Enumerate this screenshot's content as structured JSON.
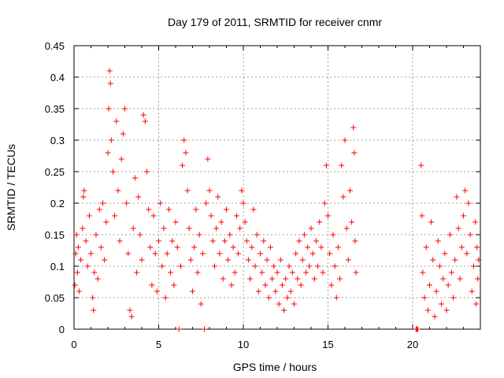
{
  "chart_data": {
    "type": "scatter",
    "title": "Day 179 of 2011, SRMTID for receiver cnmr",
    "xlabel": "GPS time / hours",
    "ylabel": "SRMTID / TECUs",
    "xlim": [
      0,
      24
    ],
    "ylim": [
      0,
      0.45
    ],
    "xticks": [
      0,
      5,
      10,
      15,
      20
    ],
    "xtick_labels": [
      "0",
      "5",
      "10",
      "15",
      "20"
    ],
    "yticks": [
      0,
      0.05,
      0.1,
      0.15,
      0.2,
      0.25,
      0.3,
      0.35,
      0.4,
      0.45
    ],
    "ytick_labels": [
      "0",
      "0.05",
      "0.1",
      "0.15",
      "0.2",
      "0.25",
      "0.3",
      "0.35",
      "0.4",
      "0.45"
    ],
    "grid": true,
    "marker": "+",
    "color": "#ff0000",
    "series": [
      {
        "name": "SRMTID",
        "points": [
          [
            0.05,
            0.07
          ],
          [
            0.1,
            0.12
          ],
          [
            0.15,
            0.15
          ],
          [
            0.2,
            0.09
          ],
          [
            0.25,
            0.13
          ],
          [
            0.3,
            0.06
          ],
          [
            0.4,
            0.11
          ],
          [
            0.5,
            0.16
          ],
          [
            0.55,
            0.21
          ],
          [
            0.6,
            0.22
          ],
          [
            0.7,
            0.14
          ],
          [
            0.8,
            0.1
          ],
          [
            0.9,
            0.18
          ],
          [
            1.0,
            0.12
          ],
          [
            1.1,
            0.05
          ],
          [
            1.15,
            0.03
          ],
          [
            1.2,
            0.09
          ],
          [
            1.3,
            0.15
          ],
          [
            1.4,
            0.08
          ],
          [
            1.5,
            0.19
          ],
          [
            1.6,
            0.13
          ],
          [
            1.7,
            0.2
          ],
          [
            1.8,
            0.11
          ],
          [
            1.9,
            0.17
          ],
          [
            2.0,
            0.28
          ],
          [
            2.05,
            0.35
          ],
          [
            2.1,
            0.41
          ],
          [
            2.15,
            0.39
          ],
          [
            2.2,
            0.3
          ],
          [
            2.3,
            0.25
          ],
          [
            2.4,
            0.18
          ],
          [
            2.5,
            0.33
          ],
          [
            2.6,
            0.22
          ],
          [
            2.7,
            0.14
          ],
          [
            2.8,
            0.27
          ],
          [
            2.9,
            0.31
          ],
          [
            3.0,
            0.35
          ],
          [
            3.1,
            0.2
          ],
          [
            3.2,
            0.12
          ],
          [
            3.3,
            0.03
          ],
          [
            3.4,
            0.02
          ],
          [
            3.5,
            0.16
          ],
          [
            3.6,
            0.24
          ],
          [
            3.7,
            0.09
          ],
          [
            3.8,
            0.21
          ],
          [
            3.9,
            0.15
          ],
          [
            4.0,
            0.11
          ],
          [
            4.1,
            0.34
          ],
          [
            4.2,
            0.33
          ],
          [
            4.3,
            0.25
          ],
          [
            4.4,
            0.19
          ],
          [
            4.5,
            0.13
          ],
          [
            4.6,
            0.07
          ],
          [
            4.7,
            0.18
          ],
          [
            4.8,
            0.12
          ],
          [
            4.9,
            0.06
          ],
          [
            5.0,
            0.14
          ],
          [
            5.1,
            0.2
          ],
          [
            5.2,
            0.1
          ],
          [
            5.3,
            0.16
          ],
          [
            5.4,
            0.05
          ],
          [
            5.5,
            0.12
          ],
          [
            5.6,
            0.19
          ],
          [
            5.7,
            0.09
          ],
          [
            5.8,
            0.14
          ],
          [
            5.9,
            0.07
          ],
          [
            6.0,
            0.17
          ],
          [
            6.1,
            0.13
          ],
          [
            6.2,
            0.0
          ],
          [
            6.3,
            0.1
          ],
          [
            6.4,
            0.26
          ],
          [
            6.5,
            0.3
          ],
          [
            6.6,
            0.28
          ],
          [
            6.7,
            0.22
          ],
          [
            6.8,
            0.16
          ],
          [
            6.9,
            0.11
          ],
          [
            7.0,
            0.06
          ],
          [
            7.1,
            0.13
          ],
          [
            7.2,
            0.19
          ],
          [
            7.3,
            0.09
          ],
          [
            7.4,
            0.15
          ],
          [
            7.5,
            0.04
          ],
          [
            7.6,
            0.12
          ],
          [
            7.7,
            0.0
          ],
          [
            7.8,
            0.2
          ],
          [
            7.9,
            0.27
          ],
          [
            8.0,
            0.22
          ],
          [
            8.1,
            0.18
          ],
          [
            8.2,
            0.14
          ],
          [
            8.3,
            0.1
          ],
          [
            8.4,
            0.16
          ],
          [
            8.5,
            0.21
          ],
          [
            8.6,
            0.12
          ],
          [
            8.7,
            0.17
          ],
          [
            8.8,
            0.08
          ],
          [
            8.9,
            0.14
          ],
          [
            9.0,
            0.19
          ],
          [
            9.1,
            0.11
          ],
          [
            9.2,
            0.15
          ],
          [
            9.3,
            0.07
          ],
          [
            9.4,
            0.13
          ],
          [
            9.5,
            0.09
          ],
          [
            9.6,
            0.18
          ],
          [
            9.7,
            0.12
          ],
          [
            9.8,
            0.16
          ],
          [
            9.9,
            0.22
          ],
          [
            10.0,
            0.2
          ],
          [
            10.1,
            0.17
          ],
          [
            10.2,
            0.14
          ],
          [
            10.3,
            0.11
          ],
          [
            10.4,
            0.08
          ],
          [
            10.5,
            0.13
          ],
          [
            10.6,
            0.19
          ],
          [
            10.7,
            0.1
          ],
          [
            10.8,
            0.15
          ],
          [
            10.9,
            0.06
          ],
          [
            11.0,
            0.12
          ],
          [
            11.1,
            0.09
          ],
          [
            11.2,
            0.14
          ],
          [
            11.3,
            0.07
          ],
          [
            11.4,
            0.11
          ],
          [
            11.5,
            0.05
          ],
          [
            11.6,
            0.13
          ],
          [
            11.7,
            0.08
          ],
          [
            11.8,
            0.1
          ],
          [
            11.9,
            0.06
          ],
          [
            12.0,
            0.09
          ],
          [
            12.1,
            0.04
          ],
          [
            12.2,
            0.11
          ],
          [
            12.3,
            0.07
          ],
          [
            12.4,
            0.03
          ],
          [
            12.5,
            0.08
          ],
          [
            12.6,
            0.05
          ],
          [
            12.7,
            0.1
          ],
          [
            12.8,
            0.06
          ],
          [
            12.9,
            0.09
          ],
          [
            13.0,
            0.04
          ],
          [
            13.1,
            0.12
          ],
          [
            13.2,
            0.08
          ],
          [
            13.3,
            0.14
          ],
          [
            13.4,
            0.07
          ],
          [
            13.5,
            0.11
          ],
          [
            13.6,
            0.15
          ],
          [
            13.7,
            0.09
          ],
          [
            13.8,
            0.13
          ],
          [
            13.9,
            0.1
          ],
          [
            14.0,
            0.16
          ],
          [
            14.1,
            0.12
          ],
          [
            14.2,
            0.08
          ],
          [
            14.3,
            0.14
          ],
          [
            14.4,
            0.1
          ],
          [
            14.5,
            0.17
          ],
          [
            14.6,
            0.13
          ],
          [
            14.7,
            0.09
          ],
          [
            14.8,
            0.2
          ],
          [
            14.9,
            0.26
          ],
          [
            15.0,
            0.18
          ],
          [
            15.1,
            0.12
          ],
          [
            15.2,
            0.07
          ],
          [
            15.3,
            0.15
          ],
          [
            15.4,
            0.1
          ],
          [
            15.5,
            0.05
          ],
          [
            15.6,
            0.13
          ],
          [
            15.7,
            0.08
          ],
          [
            15.8,
            0.26
          ],
          [
            15.9,
            0.21
          ],
          [
            16.0,
            0.3
          ],
          [
            16.1,
            0.16
          ],
          [
            16.2,
            0.11
          ],
          [
            16.3,
            0.22
          ],
          [
            16.4,
            0.17
          ],
          [
            16.5,
            0.32
          ],
          [
            16.55,
            0.28
          ],
          [
            16.6,
            0.14
          ],
          [
            16.65,
            0.09
          ],
          [
            20.2,
            0.0
          ],
          [
            20.25,
            0.0
          ],
          [
            20.3,
            0.0
          ],
          [
            20.5,
            0.26
          ],
          [
            20.55,
            0.18
          ],
          [
            20.6,
            0.09
          ],
          [
            20.7,
            0.05
          ],
          [
            20.8,
            0.13
          ],
          [
            20.9,
            0.03
          ],
          [
            21.0,
            0.07
          ],
          [
            21.1,
            0.17
          ],
          [
            21.2,
            0.11
          ],
          [
            21.3,
            0.02
          ],
          [
            21.4,
            0.06
          ],
          [
            21.5,
            0.14
          ],
          [
            21.6,
            0.1
          ],
          [
            21.7,
            0.04
          ],
          [
            21.8,
            0.08
          ],
          [
            21.9,
            0.12
          ],
          [
            22.0,
            0.03
          ],
          [
            22.1,
            0.07
          ],
          [
            22.2,
            0.15
          ],
          [
            22.3,
            0.09
          ],
          [
            22.4,
            0.05
          ],
          [
            22.5,
            0.11
          ],
          [
            22.6,
            0.21
          ],
          [
            22.7,
            0.16
          ],
          [
            22.8,
            0.08
          ],
          [
            22.9,
            0.13
          ],
          [
            23.0,
            0.18
          ],
          [
            23.1,
            0.22
          ],
          [
            23.2,
            0.12
          ],
          [
            23.3,
            0.2
          ],
          [
            23.4,
            0.15
          ],
          [
            23.5,
            0.06
          ],
          [
            23.6,
            0.1
          ],
          [
            23.7,
            0.17
          ],
          [
            23.75,
            0.04
          ],
          [
            23.8,
            0.13
          ],
          [
            23.85,
            0.08
          ],
          [
            23.9,
            0.11
          ]
        ]
      }
    ]
  }
}
